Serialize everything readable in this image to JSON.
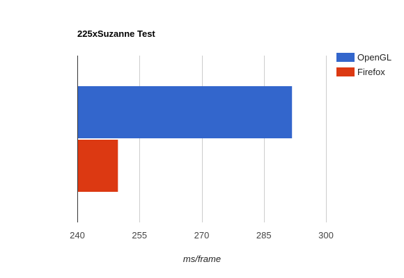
{
  "chart_data": {
    "type": "bar",
    "orientation": "horizontal",
    "title": "225xSuzanne Test",
    "xlabel": "ms/frame",
    "ylabel": "",
    "xlim": [
      240,
      300
    ],
    "xticks": [
      240,
      255,
      270,
      285,
      300
    ],
    "grid": true,
    "legend_position": "right",
    "series": [
      {
        "name": "OpenGL",
        "value": 291.8,
        "color": "#3366cc"
      },
      {
        "name": "Firefox",
        "value": 249.8,
        "color": "#dc3912"
      }
    ]
  }
}
